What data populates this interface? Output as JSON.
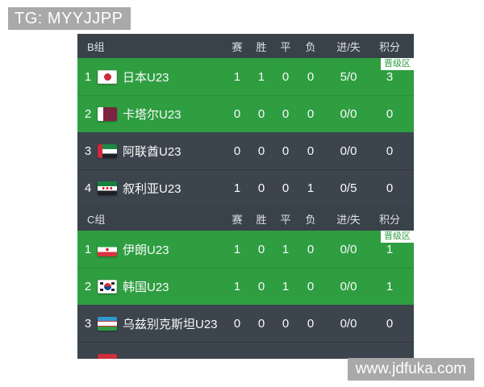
{
  "page": {
    "tg_badge": "TG: MYYJJPP",
    "watermark": "www.jdfuka.com"
  },
  "colors": {
    "promotion_green": "#2e9e41",
    "dark_header": "#394149",
    "dark_row": "#3c444d",
    "badge_gray": "#a9a9a9"
  },
  "table": {
    "columns": {
      "played": "赛",
      "won": "胜",
      "drawn": "平",
      "lost": "负",
      "goals": "进/失",
      "points": "积分"
    },
    "promotion_label": "晋级区",
    "groups": [
      {
        "name": "B组",
        "teams": [
          {
            "rank": "1",
            "team": "日本U23",
            "flag": "japan",
            "zone": "green",
            "played": "1",
            "won": "1",
            "drawn": "0",
            "lost": "0",
            "goals": "5/0",
            "points": "3"
          },
          {
            "rank": "2",
            "team": "卡塔尔U23",
            "flag": "qatar",
            "zone": "green",
            "played": "0",
            "won": "0",
            "drawn": "0",
            "lost": "0",
            "goals": "0/0",
            "points": "0"
          },
          {
            "rank": "3",
            "team": "阿联酋U23",
            "flag": "uae",
            "zone": "dark",
            "played": "0",
            "won": "0",
            "drawn": "0",
            "lost": "0",
            "goals": "0/0",
            "points": "0"
          },
          {
            "rank": "4",
            "team": "叙利亚U23",
            "flag": "syria",
            "zone": "dark",
            "played": "1",
            "won": "0",
            "drawn": "0",
            "lost": "1",
            "goals": "0/5",
            "points": "0"
          }
        ]
      },
      {
        "name": "C组",
        "teams": [
          {
            "rank": "1",
            "team": "伊朗U23",
            "flag": "iran",
            "zone": "green",
            "played": "1",
            "won": "0",
            "drawn": "1",
            "lost": "0",
            "goals": "0/0",
            "points": "1"
          },
          {
            "rank": "2",
            "team": "韩国U23",
            "flag": "korea",
            "zone": "green",
            "played": "1",
            "won": "0",
            "drawn": "1",
            "lost": "0",
            "goals": "0/0",
            "points": "1"
          },
          {
            "rank": "3",
            "team": "乌兹别克斯坦U23",
            "flag": "uzbekistan",
            "zone": "dark",
            "played": "0",
            "won": "0",
            "drawn": "0",
            "lost": "0",
            "goals": "0/0",
            "points": "0"
          },
          {
            "rank": "",
            "team": "",
            "flag": "red-partial",
            "zone": "dark",
            "played": "",
            "won": "",
            "drawn": "",
            "lost": "",
            "goals": "",
            "points": ""
          }
        ]
      }
    ]
  }
}
